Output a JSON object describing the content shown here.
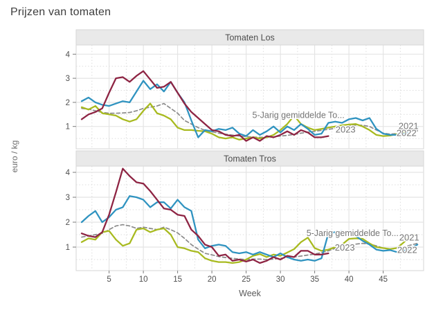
{
  "title": "Prijzen van tomaten",
  "axes": {
    "y_label": "euro / kg",
    "x_label": "Week",
    "y_ticks": [
      1,
      2,
      3,
      4
    ],
    "x_ticks": [
      5,
      10,
      15,
      20,
      25,
      30,
      35,
      40,
      45
    ]
  },
  "colors": {
    "y2021": "#a8ba1f",
    "y2022": "#2f93c0",
    "y2023": "#8e2443",
    "avg": "#8a8a8a",
    "direct_label": "#757575",
    "strip_bg": "#e9e9e9",
    "panel_border": "#d6d6d6",
    "grid_major": "#e4e4e4",
    "grid_minor": "#dcdcdc",
    "axis_text": "#4f4f4f",
    "tick_mark": "#7a7a7a"
  },
  "chart_data": [
    {
      "type": "line",
      "title": "Tomaten Los",
      "xlabel": "Week",
      "ylabel": "euro / kg",
      "x_range": [
        1,
        50
      ],
      "ylim": [
        0,
        4.4
      ],
      "grid": true,
      "series": [
        {
          "name": "5-Jarig gemiddelde To...",
          "color_key": "avg",
          "style": "dashed",
          "values": [
            1.75,
            1.72,
            1.65,
            1.58,
            1.55,
            1.55,
            1.56,
            1.58,
            1.65,
            1.75,
            1.8,
            1.85,
            1.95,
            1.75,
            1.55,
            1.25,
            1.1,
            0.95,
            0.84,
            0.78,
            0.72,
            0.68,
            0.64,
            0.6,
            0.58,
            0.56,
            0.55,
            0.55,
            0.57,
            0.6,
            0.63,
            0.67,
            0.72,
            0.76,
            0.8,
            0.84,
            0.88,
            0.92,
            0.96,
            1.02,
            1.06,
            1.05,
            1.0,
            0.85,
            0.72,
            0.68,
            0.7,
            0.74,
            0.78,
            0.82
          ]
        },
        {
          "name": "2021",
          "color_key": "y2021",
          "style": "solid",
          "values": [
            1.8,
            1.7,
            1.85,
            1.55,
            1.5,
            1.45,
            1.3,
            1.2,
            1.3,
            1.65,
            1.95,
            1.55,
            1.45,
            1.3,
            0.95,
            0.85,
            0.85,
            0.82,
            0.8,
            0.7,
            0.55,
            0.5,
            0.55,
            0.45,
            0.5,
            0.55,
            0.5,
            0.55,
            0.65,
            0.85,
            1.1,
            1.45,
            1.1,
            0.95,
            0.85,
            0.9,
            0.95,
            1.0,
            1.05,
            1.08,
            1.1,
            1.0,
            0.85,
            0.65,
            0.6,
            0.62,
            0.68,
            0.75,
            0.85,
            0.95
          ]
        },
        {
          "name": "2022",
          "color_key": "y2022",
          "style": "solid",
          "values": [
            2.05,
            2.2,
            2.0,
            1.9,
            1.85,
            1.95,
            2.05,
            2.0,
            2.45,
            2.9,
            2.55,
            2.75,
            2.45,
            2.85,
            2.4,
            2.0,
            1.25,
            0.55,
            0.85,
            0.8,
            0.9,
            0.85,
            0.95,
            0.7,
            0.6,
            0.85,
            0.65,
            0.8,
            1.0,
            0.75,
            1.0,
            0.85,
            1.1,
            0.9,
            0.65,
            0.7,
            1.15,
            1.2,
            1.15,
            1.3,
            1.35,
            1.25,
            1.35,
            0.9,
            0.7,
            0.65,
            0.65,
            0.7,
            0.8,
            0.95
          ]
        },
        {
          "name": "2023",
          "color_key": "y2023",
          "style": "solid",
          "values": [
            1.3,
            1.5,
            1.6,
            1.75,
            2.4,
            3.0,
            3.05,
            2.85,
            3.1,
            3.3,
            2.95,
            2.6,
            2.65,
            2.85,
            2.4,
            1.95,
            1.6,
            1.35,
            1.1,
            0.85,
            0.8,
            0.65,
            0.6,
            0.65,
            0.4,
            0.55,
            0.4,
            0.6,
            0.55,
            0.65,
            0.8,
            0.65,
            0.85,
            0.75,
            0.55,
            0.55,
            0.6
          ]
        }
      ],
      "direct_labels": [
        {
          "text": "5-Jarig gemiddelde To...",
          "week": 25.9,
          "value": 1.45,
          "anchor": "start",
          "size": 12.5
        },
        {
          "text": "2023",
          "week": 39.5,
          "value": 0.85,
          "anchor": "middle",
          "size": 13
        },
        {
          "text": "2021",
          "week": 48.7,
          "value": 0.99,
          "anchor": "middle",
          "size": 13
        },
        {
          "text": "2022",
          "week": 48.4,
          "value": 0.7,
          "anchor": "middle",
          "size": 13
        }
      ]
    },
    {
      "type": "line",
      "title": "Tomaten Tros",
      "xlabel": "Week",
      "ylabel": "euro / kg",
      "x_range": [
        1,
        50
      ],
      "ylim": [
        0,
        4.3
      ],
      "grid": true,
      "series": [
        {
          "name": "5-Jarig gemiddelde To...",
          "color_key": "avg",
          "style": "dashed",
          "values": [
            1.4,
            1.45,
            1.5,
            1.55,
            1.7,
            1.85,
            1.9,
            1.85,
            1.75,
            1.8,
            1.75,
            1.7,
            1.8,
            1.7,
            1.57,
            1.35,
            1.1,
            0.92,
            0.75,
            0.69,
            0.62,
            0.58,
            0.55,
            0.52,
            0.5,
            0.52,
            0.52,
            0.5,
            0.52,
            0.55,
            0.58,
            0.6,
            0.64,
            0.68,
            0.72,
            0.78,
            0.85,
            0.95,
            1.05,
            1.1,
            1.12,
            1.15,
            1.12,
            1.05,
            0.96,
            0.92,
            0.95,
            1.0,
            1.08,
            1.15
          ]
        },
        {
          "name": "2021",
          "color_key": "y2021",
          "style": "solid",
          "values": [
            1.2,
            1.35,
            1.3,
            1.6,
            1.65,
            1.3,
            1.05,
            1.15,
            1.7,
            1.75,
            1.6,
            1.7,
            1.75,
            1.5,
            1.0,
            0.95,
            0.85,
            0.8,
            0.55,
            0.45,
            0.4,
            0.4,
            0.36,
            0.4,
            0.5,
            0.65,
            0.72,
            0.6,
            0.7,
            0.65,
            0.78,
            0.92,
            1.2,
            1.38,
            0.96,
            0.85,
            0.9,
            1.0,
            1.1,
            1.33,
            1.35,
            1.33,
            1.15,
            1.0,
            0.96,
            0.92,
            0.96,
            1.19,
            1.47,
            1.5
          ]
        },
        {
          "name": "2022",
          "color_key": "y2022",
          "style": "solid",
          "values": [
            2.0,
            2.25,
            2.45,
            2.0,
            2.2,
            2.5,
            2.6,
            3.05,
            3.0,
            2.9,
            2.6,
            2.8,
            2.8,
            2.55,
            2.9,
            2.6,
            2.45,
            1.3,
            0.95,
            1.05,
            1.1,
            1.05,
            0.8,
            0.75,
            0.8,
            0.7,
            0.8,
            0.7,
            0.6,
            0.75,
            0.6,
            0.5,
            0.45,
            0.5,
            0.45,
            0.55,
            1.55,
            1.6,
            1.65,
            1.55,
            1.45,
            1.25,
            1.1,
            0.9,
            0.85,
            0.88,
            0.8,
            0.85,
            0.95,
            1.1
          ]
        },
        {
          "name": "2023",
          "color_key": "y2023",
          "style": "solid",
          "values": [
            1.55,
            1.45,
            1.4,
            1.6,
            2.3,
            3.2,
            4.15,
            3.85,
            3.6,
            3.55,
            3.25,
            2.9,
            2.55,
            2.5,
            2.3,
            2.25,
            1.7,
            1.45,
            1.1,
            1.0,
            0.65,
            0.7,
            0.45,
            0.5,
            0.42,
            0.5,
            0.36,
            0.45,
            0.6,
            0.5,
            0.65,
            0.6,
            0.85,
            0.85,
            0.7,
            0.7,
            0.75
          ]
        }
      ],
      "direct_labels": [
        {
          "text": "5-Jarig gemiddelde To...",
          "week": 33.8,
          "value": 1.53,
          "anchor": "start",
          "size": 12.5
        },
        {
          "text": "2023",
          "week": 39.4,
          "value": 0.95,
          "anchor": "middle",
          "size": 13
        },
        {
          "text": "2021",
          "week": 48.8,
          "value": 1.36,
          "anchor": "middle",
          "size": 13
        },
        {
          "text": "2022",
          "week": 48.5,
          "value": 0.86,
          "anchor": "middle",
          "size": 13
        }
      ]
    }
  ]
}
